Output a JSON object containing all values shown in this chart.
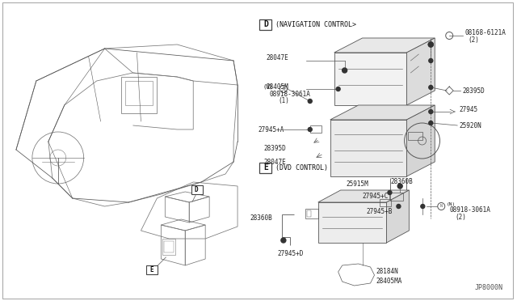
{
  "bg_color": "#ffffff",
  "diagram_code": "JP8000N",
  "section_D_title": "(NAVIGATION CONTROL>",
  "section_E_title": "(DVD CONTROL)",
  "line_color": "#555555",
  "label_color": "#222222",
  "label_fontsize": 5.8,
  "border_color": "#cccccc"
}
